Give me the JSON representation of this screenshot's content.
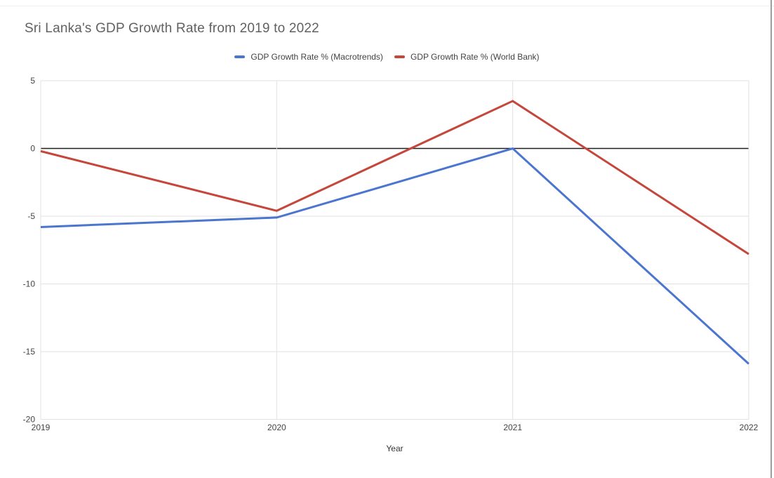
{
  "chart": {
    "title": "Sri Lanka's GDP Growth Rate from 2019 to 2022",
    "x_axis_title": "Year",
    "legend": [
      {
        "label": "GDP Growth Rate % (Macrotrends)",
        "color": "#4b76d0"
      },
      {
        "label": "GDP Growth Rate % (World Bank)",
        "color": "#c5473c"
      }
    ]
  },
  "chart_data": {
    "type": "line",
    "title": "Sri Lanka's GDP Growth Rate from 2019 to 2022",
    "categories": [
      "2019",
      "2020",
      "2021",
      "2022"
    ],
    "series": [
      {
        "name": "GDP Growth Rate % (Macrotrends)",
        "color": "#4b76d0",
        "values": [
          -5.8,
          -5.1,
          0,
          -15.9
        ]
      },
      {
        "name": "GDP Growth Rate % (World Bank)",
        "color": "#c5473c",
        "values": [
          -0.2,
          -4.6,
          3.5,
          -7.8
        ]
      }
    ],
    "xlabel": "Year",
    "ylabel": "",
    "ylim": [
      -20,
      5
    ],
    "y_ticks": [
      5,
      0,
      -5,
      -10,
      -15,
      -20
    ],
    "grid": true,
    "legend_position": "top",
    "colors": {
      "grid": "#e2e2e2",
      "zero_line": "#1f1f1f",
      "axis_text": "#444444",
      "title_text": "#616161",
      "background": "#ffffff"
    }
  }
}
